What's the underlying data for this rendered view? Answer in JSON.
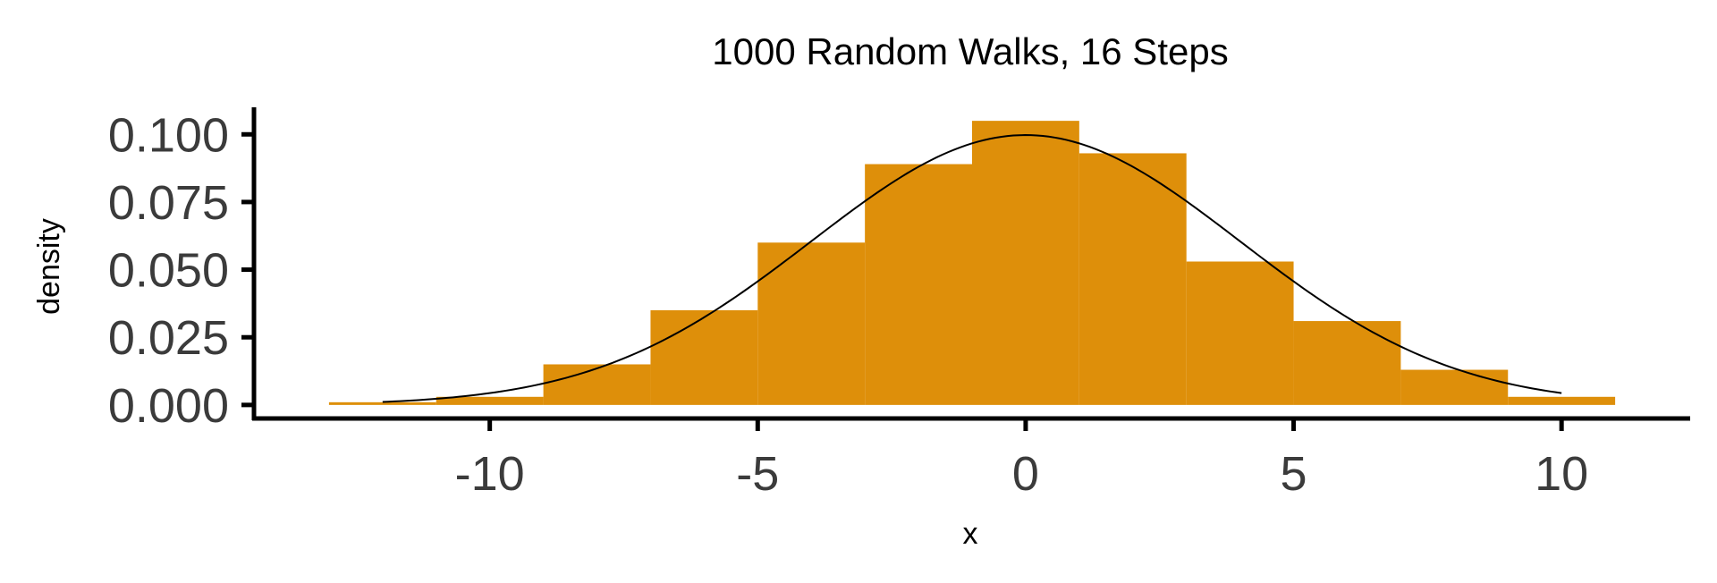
{
  "chart_data": {
    "type": "bar",
    "title": "1000 Random Walks, 16 Steps",
    "xlabel": "x",
    "ylabel": "density",
    "xlim": [
      -14.4,
      12.4
    ],
    "ylim": [
      -0.005,
      0.11
    ],
    "x_ticks": [
      -10,
      -5,
      0,
      5,
      10
    ],
    "x_tick_labels": [
      "-10",
      "-5",
      "0",
      "5",
      "10"
    ],
    "y_ticks": [
      0.0,
      0.025,
      0.05,
      0.075,
      0.1
    ],
    "y_tick_labels": [
      "0.000",
      "0.025",
      "0.050",
      "0.075",
      "0.100"
    ],
    "grid": false,
    "histogram": {
      "name": "",
      "color": "#de8f0a",
      "bins": [
        {
          "x0": -13,
          "x1": -11,
          "density": 0.001
        },
        {
          "x0": -11,
          "x1": -9,
          "density": 0.003
        },
        {
          "x0": -9,
          "x1": -7,
          "density": 0.015
        },
        {
          "x0": -7,
          "x1": -5,
          "density": 0.035
        },
        {
          "x0": -5,
          "x1": -3,
          "density": 0.06
        },
        {
          "x0": -3,
          "x1": -1,
          "density": 0.089
        },
        {
          "x0": -1,
          "x1": 1,
          "density": 0.105
        },
        {
          "x0": 1,
          "x1": 3,
          "density": 0.093
        },
        {
          "x0": 3,
          "x1": 5,
          "density": 0.053
        },
        {
          "x0": 5,
          "x1": 7,
          "density": 0.031
        },
        {
          "x0": 7,
          "x1": 9,
          "density": 0.013
        },
        {
          "x0": 9,
          "x1": 11,
          "density": 0.003
        }
      ]
    },
    "curve": {
      "type": "normal_density",
      "mean": 0,
      "sd": 4,
      "x_range": [
        -12,
        10
      ],
      "color": "#000000"
    }
  }
}
